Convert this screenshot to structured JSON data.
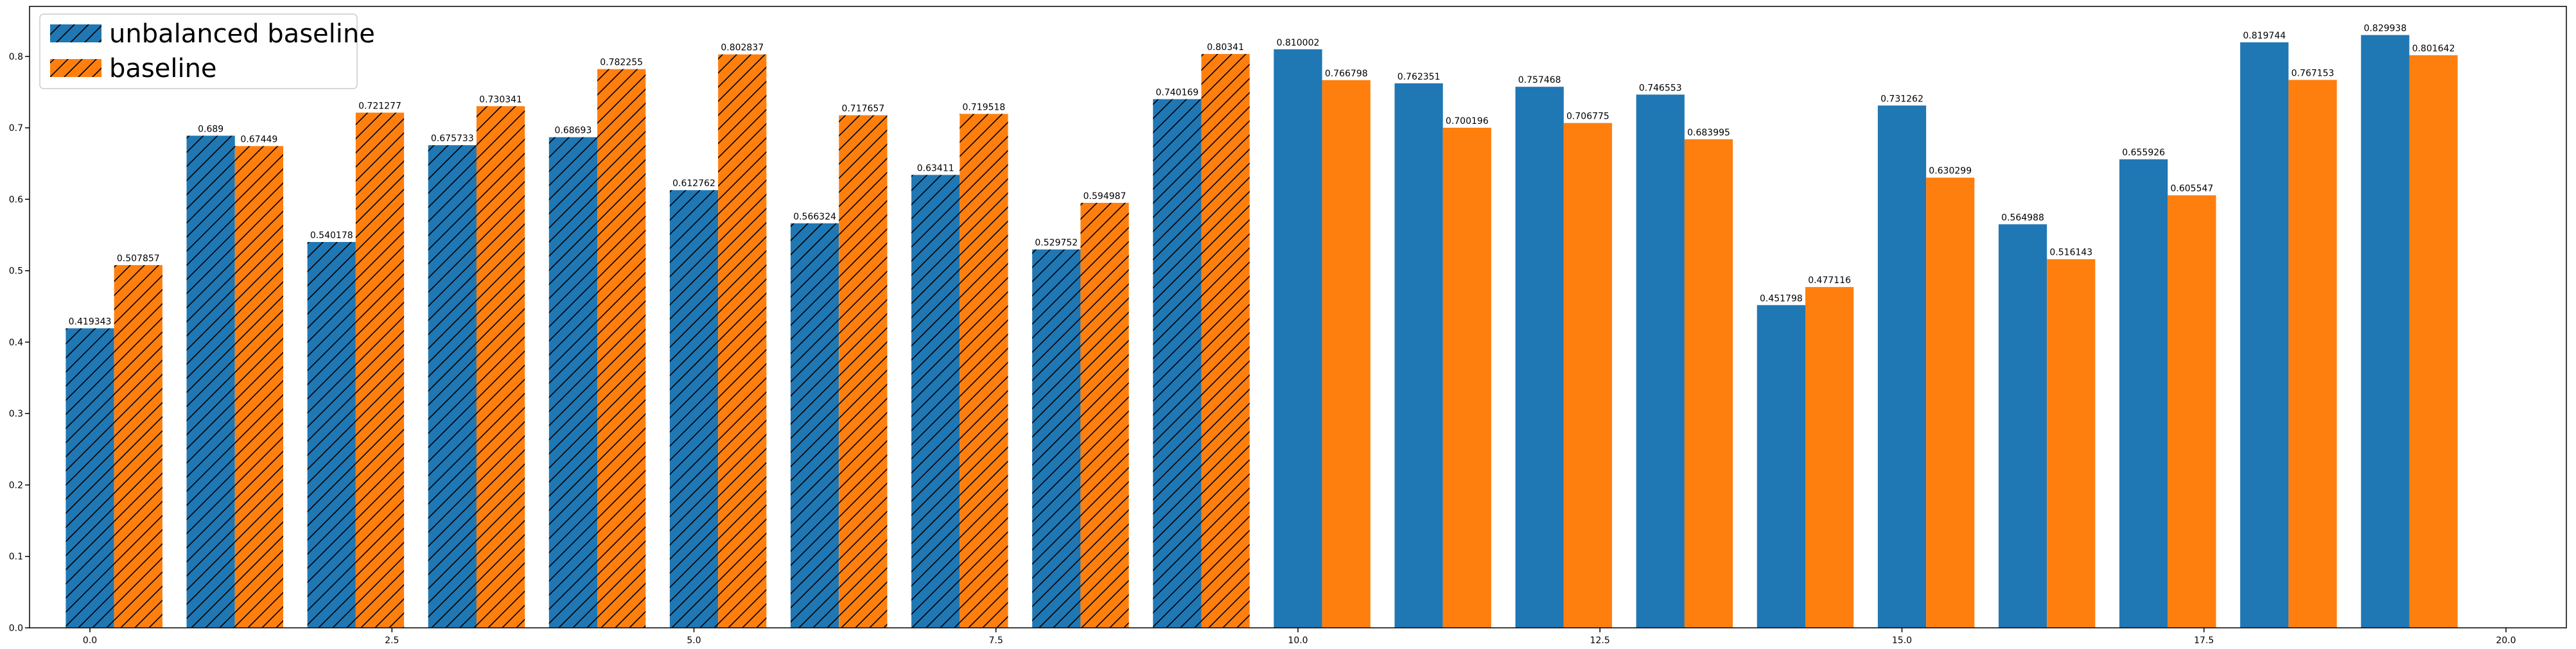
{
  "chart_data": {
    "type": "bar",
    "title": "",
    "xlabel": "",
    "ylabel": "",
    "xlim": [
      -0.5,
      20.5
    ],
    "ylim": [
      0,
      0.87
    ],
    "xticks": [
      0.0,
      2.5,
      5.0,
      7.5,
      10.0,
      12.5,
      15.0,
      17.5,
      20.0
    ],
    "xtick_labels": [
      "0.0",
      "2.5",
      "5.0",
      "7.5",
      "10.0",
      "12.5",
      "15.0",
      "17.5",
      "20.0"
    ],
    "yticks": [
      0.0,
      0.1,
      0.2,
      0.3,
      0.4,
      0.5,
      0.6,
      0.7,
      0.8
    ],
    "ytick_labels": [
      "0.0",
      "0.1",
      "0.2",
      "0.3",
      "0.4",
      "0.5",
      "0.6",
      "0.7",
      "0.8"
    ],
    "grid": false,
    "legend_position": "top-left",
    "bar_width": 0.4,
    "hatched_groups": 10,
    "x": [
      0,
      1,
      2,
      3,
      4,
      5,
      6,
      7,
      8,
      9,
      10,
      11,
      12,
      13,
      14,
      15,
      16,
      17,
      18,
      19
    ],
    "series": [
      {
        "name": "unbalanced baseline",
        "color": "#1f77b4",
        "values": [
          0.419343,
          0.689,
          0.540178,
          0.675733,
          0.68693,
          0.612762,
          0.566324,
          0.63411,
          0.529752,
          0.740169,
          0.810002,
          0.762351,
          0.757468,
          0.746553,
          0.451798,
          0.731262,
          0.564988,
          0.655926,
          0.819744,
          0.829938
        ],
        "labels": [
          "0.419343",
          "0.689",
          "0.540178",
          "0.675733",
          "0.68693",
          "0.612762",
          "0.566324",
          "0.63411",
          "0.529752",
          "0.740169",
          "0.810002",
          "0.762351",
          "0.757468",
          "0.746553",
          "0.451798",
          "0.731262",
          "0.564988",
          "0.655926",
          "0.819744",
          "0.829938"
        ]
      },
      {
        "name": "baseline",
        "color": "#ff7f0e",
        "values": [
          0.507857,
          0.67449,
          0.721277,
          0.730341,
          0.782255,
          0.802837,
          0.717657,
          0.719518,
          0.594987,
          0.80341,
          0.766798,
          0.700196,
          0.706775,
          0.683995,
          0.477116,
          0.630299,
          0.516143,
          0.605547,
          0.767153,
          0.801642
        ],
        "labels": [
          "0.507857",
          "0.67449",
          "0.721277",
          "0.730341",
          "0.782255",
          "0.802837",
          "0.717657",
          "0.719518",
          "0.594987",
          "0.80341",
          "0.766798",
          "0.700196",
          "0.706775",
          "0.683995",
          "0.477116",
          "0.630299",
          "0.516143",
          "0.605547",
          "0.767153",
          "0.801642"
        ]
      }
    ]
  }
}
